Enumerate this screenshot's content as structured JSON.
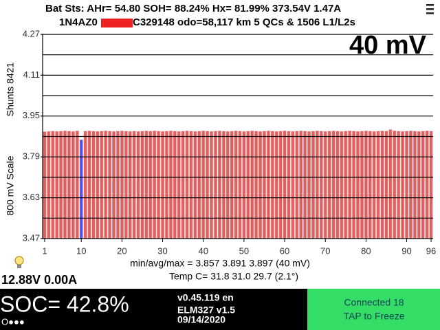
{
  "header": {
    "line1": "Bat Sts:  AHr= 54.80  SOH= 88.24%  Hx= 81.99%  373.54V 1.47A",
    "vin_start": "1N4AZ0",
    "vin_end": "C329148 odo=58,117 km  5 QCs & 1506 L1/L2s"
  },
  "chart_data": {
    "type": "bar",
    "scale_label": "40 mV",
    "ylabel_left": "800 mV Scale",
    "ylabel_right": "Shunts 8421",
    "categories": [
      1,
      2,
      3,
      4,
      5,
      6,
      7,
      8,
      9,
      10,
      11,
      12,
      13,
      14,
      15,
      16,
      17,
      18,
      19,
      20,
      21,
      22,
      23,
      24,
      25,
      26,
      27,
      28,
      29,
      30,
      31,
      32,
      33,
      34,
      35,
      36,
      37,
      38,
      39,
      40,
      41,
      42,
      43,
      44,
      45,
      46,
      47,
      48,
      49,
      50,
      51,
      52,
      53,
      54,
      55,
      56,
      57,
      58,
      59,
      60,
      61,
      62,
      63,
      64,
      65,
      66,
      67,
      68,
      69,
      70,
      71,
      72,
      73,
      74,
      75,
      76,
      77,
      78,
      79,
      80,
      81,
      82,
      83,
      84,
      85,
      86,
      87,
      88,
      89,
      90,
      91,
      92,
      93,
      94,
      95,
      96
    ],
    "values": [
      3.889,
      3.89,
      3.891,
      3.89,
      3.891,
      3.892,
      3.891,
      3.89,
      3.892,
      3.857,
      3.891,
      3.892,
      3.891,
      3.89,
      3.891,
      3.892,
      3.891,
      3.89,
      3.891,
      3.892,
      3.891,
      3.89,
      3.891,
      3.89,
      3.891,
      3.892,
      3.891,
      3.892,
      3.891,
      3.89,
      3.891,
      3.892,
      3.891,
      3.89,
      3.891,
      3.892,
      3.891,
      3.89,
      3.891,
      3.892,
      3.891,
      3.89,
      3.891,
      3.892,
      3.891,
      3.89,
      3.891,
      3.892,
      3.891,
      3.89,
      3.891,
      3.892,
      3.891,
      3.89,
      3.891,
      3.892,
      3.891,
      3.89,
      3.891,
      3.892,
      3.891,
      3.89,
      3.891,
      3.892,
      3.891,
      3.89,
      3.891,
      3.892,
      3.891,
      3.89,
      3.891,
      3.892,
      3.891,
      3.89,
      3.891,
      3.892,
      3.891,
      3.89,
      3.891,
      3.892,
      3.891,
      3.89,
      3.891,
      3.892,
      3.891,
      3.897,
      3.892,
      3.891,
      3.89,
      3.891,
      3.892,
      3.891,
      3.89,
      3.891,
      3.892,
      3.891
    ],
    "color": "#e06060",
    "min_color": "#5050e0",
    "ylim": [
      3.47,
      4.27
    ],
    "yticks": [
      3.47,
      3.63,
      3.79,
      3.95,
      4.11,
      4.27
    ],
    "minor_yticks": [
      3.55,
      3.71,
      3.87,
      4.03,
      4.19
    ],
    "xlim": [
      0.5,
      96.5
    ],
    "xticks": [
      1,
      10,
      20,
      30,
      40,
      50,
      60,
      70,
      80,
      90,
      96
    ],
    "grid": true
  },
  "stats": {
    "line1": "min/avg/max = 3.857 3.891 3.897  (40 mV)",
    "line2": "Temp C= 31.8  31.0  29.7  (2.1°)"
  },
  "status": {
    "pack": "12.88V 0.00A",
    "soc": "SOC= 42.8%",
    "dots": "O●●●",
    "version": "v0.45.119 en",
    "elm": "ELM327 v1.5",
    "date": "09/14/2020",
    "connected": "Connected 18",
    "tap": "TAP to Freeze"
  }
}
